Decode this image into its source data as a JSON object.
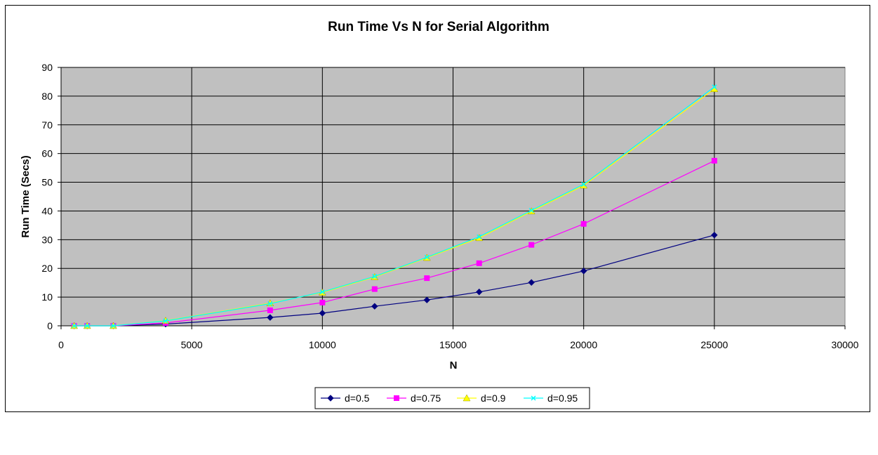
{
  "chart_data": {
    "type": "line",
    "title": "Run Time Vs N  for Serial Algorithm",
    "xlabel": "N",
    "ylabel": "Run Time (Secs)",
    "xlim": [
      0,
      30000
    ],
    "ylim": [
      0,
      90
    ],
    "xticks": [
      0,
      5000,
      10000,
      15000,
      20000,
      25000,
      30000
    ],
    "yticks": [
      0,
      10,
      20,
      30,
      40,
      50,
      60,
      70,
      80,
      90
    ],
    "grid": true,
    "legend_position": "bottom",
    "x": [
      500,
      1000,
      2000,
      4000,
      8000,
      10000,
      12000,
      14000,
      16000,
      18000,
      20000,
      25000
    ],
    "series": [
      {
        "name": "d=0.5",
        "color": "#000080",
        "marker": "diamond",
        "values": [
          0,
          0,
          0,
          0.6,
          2.9,
          4.4,
          6.8,
          9,
          11.8,
          15.1,
          19.1,
          31.6
        ]
      },
      {
        "name": "d=0.75",
        "color": "#ff00ff",
        "marker": "square",
        "values": [
          0,
          0,
          0,
          1,
          5.4,
          8.1,
          12.8,
          16.6,
          21.8,
          28.2,
          35.5,
          57.5
        ]
      },
      {
        "name": "d=0.9",
        "color": "#ffff00",
        "marker": "triangle",
        "values": [
          0,
          0,
          0,
          1.8,
          7.9,
          11.6,
          17,
          23.7,
          30.6,
          39.9,
          48.9,
          82.5
        ]
      },
      {
        "name": "d=0.95",
        "color": "#00ffff",
        "marker": "x",
        "values": [
          0,
          0,
          0,
          1.7,
          7.7,
          11.8,
          17.2,
          23.9,
          31,
          40.2,
          49.3,
          83.2
        ]
      }
    ]
  }
}
